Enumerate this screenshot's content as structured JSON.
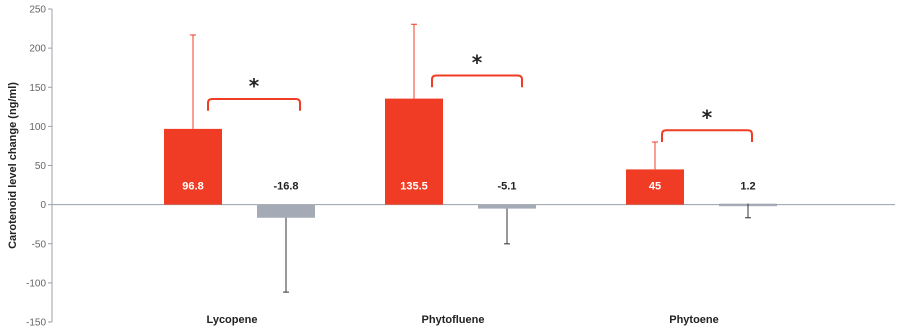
{
  "chart_data": {
    "type": "bar",
    "ylabel": "Carotenoid level change (ng/ml)",
    "ylim": [
      -150,
      250
    ],
    "yticks": [
      250,
      200,
      150,
      100,
      50,
      0,
      -50,
      -100,
      -150
    ],
    "categories": [
      "Lycopene",
      "Phytofluene",
      "Phytoene"
    ],
    "series": [
      {
        "values": [
          96.8,
          135.5,
          45
        ],
        "error": [
          120,
          95,
          35
        ],
        "error_direction": "up",
        "color": "#f03c24",
        "label_color": "#ffffff"
      },
      {
        "values": [
          -16.8,
          -5.1,
          1.2
        ],
        "error": [
          95,
          45,
          18
        ],
        "error_direction": "down",
        "color": "#a4abb6",
        "label_color": "#222222"
      }
    ],
    "data_labels": [
      [
        "96.8",
        "135.5",
        "45"
      ],
      [
        "-16.8",
        "-5.1",
        "1.2"
      ]
    ],
    "significance": [
      {
        "category": "Lycopene",
        "marker": "*"
      },
      {
        "category": "Phytofluene",
        "marker": "*"
      },
      {
        "category": "Phytoene",
        "marker": "*"
      }
    ],
    "bracket_color": "#f03c24",
    "axis_color": "#9aa0a8",
    "grid": false,
    "legend": "none"
  }
}
